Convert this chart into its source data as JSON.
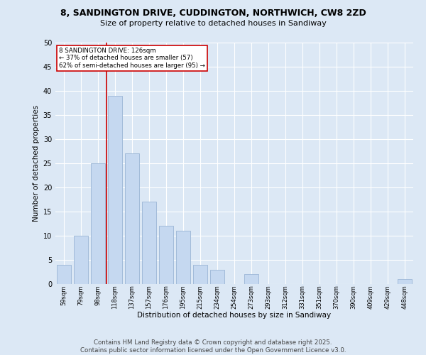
{
  "title_line1": "8, SANDINGTON DRIVE, CUDDINGTON, NORTHWICH, CW8 2ZD",
  "title_line2": "Size of property relative to detached houses in Sandiway",
  "xlabel": "Distribution of detached houses by size in Sandiway",
  "ylabel": "Number of detached properties",
  "categories": [
    "59sqm",
    "79sqm",
    "98sqm",
    "118sqm",
    "137sqm",
    "157sqm",
    "176sqm",
    "195sqm",
    "215sqm",
    "234sqm",
    "254sqm",
    "273sqm",
    "293sqm",
    "312sqm",
    "331sqm",
    "351sqm",
    "370sqm",
    "390sqm",
    "409sqm",
    "429sqm",
    "448sqm"
  ],
  "values": [
    4,
    10,
    25,
    39,
    27,
    17,
    12,
    11,
    4,
    3,
    0,
    2,
    0,
    0,
    0,
    0,
    0,
    0,
    0,
    0,
    1
  ],
  "bar_color": "#c5d8f0",
  "bar_edge_color": "#9ab5d5",
  "ylim": [
    0,
    50
  ],
  "yticks": [
    0,
    5,
    10,
    15,
    20,
    25,
    30,
    35,
    40,
    45,
    50
  ],
  "property_line_x": 3,
  "annotation_text": "8 SANDINGTON DRIVE: 126sqm\n← 37% of detached houses are smaller (57)\n62% of semi-detached houses are larger (95) →",
  "annotation_box_color": "#ffffff",
  "annotation_box_edge": "#cc0000",
  "vline_color": "#cc0000",
  "footer_line1": "Contains HM Land Registry data © Crown copyright and database right 2025.",
  "footer_line2": "Contains public sector information licensed under the Open Government Licence v3.0.",
  "background_color": "#dce8f5",
  "plot_background": "#dce8f5",
  "grid_color": "#ffffff"
}
